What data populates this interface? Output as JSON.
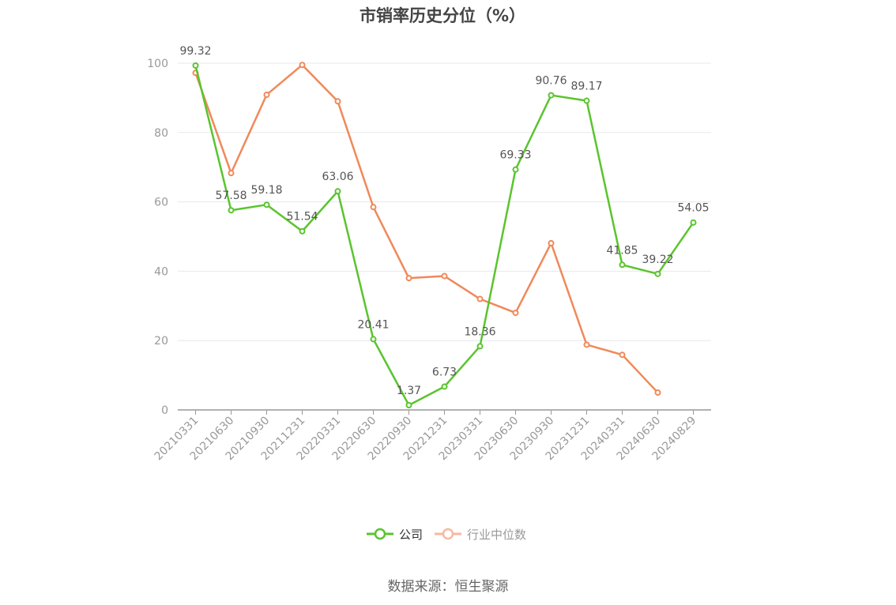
{
  "chart_data": {
    "type": "line",
    "title": "市销率历史分位（%）",
    "categories": [
      "20210331",
      "20210630",
      "20210930",
      "20211231",
      "20220331",
      "20220630",
      "20220930",
      "20221231",
      "20230331",
      "20230630",
      "20230930",
      "20231231",
      "20240331",
      "20240630",
      "20240829"
    ],
    "series": [
      {
        "name": "公司",
        "color": "#5ac42e",
        "values": [
          99.32,
          57.58,
          59.18,
          51.54,
          63.06,
          20.41,
          1.37,
          6.73,
          18.36,
          69.33,
          90.76,
          89.17,
          41.85,
          39.22,
          54.05
        ],
        "show_labels": true
      },
      {
        "name": "行业中位数",
        "color": "#f0895a",
        "values": [
          97.2,
          68.3,
          90.9,
          99.5,
          89.0,
          58.5,
          38.0,
          38.6,
          32.0,
          28.0,
          48.1,
          18.8,
          15.9,
          5.0,
          null
        ],
        "show_labels": false
      }
    ],
    "ylim": [
      0,
      100
    ],
    "yticks": [
      0,
      20,
      40,
      60,
      80,
      100
    ],
    "grid": true,
    "legend_position": "bottom-center",
    "legend_colors": {
      "公司": "#5ac42e",
      "行业中位数": "#f7b9a0"
    }
  },
  "source": "数据来源：恒生聚源"
}
